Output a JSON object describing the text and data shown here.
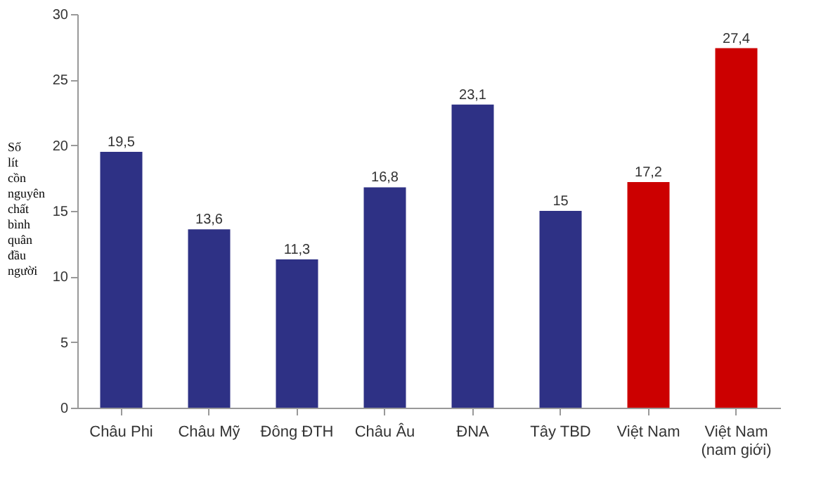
{
  "chart_data": {
    "type": "bar",
    "ylabel": "Số lít cồn nguyên chất bình quân đầu người",
    "categories": [
      "Châu Phi",
      "Châu Mỹ",
      "Đông ĐTH",
      "Châu Âu",
      "ĐNA",
      "Tây TBD",
      "Việt Nam",
      "Việt Nam\n(nam giới)"
    ],
    "values": [
      19.5,
      13.6,
      11.3,
      16.8,
      23.1,
      15,
      17.2,
      27.4
    ],
    "value_labels": [
      "19,5",
      "13,6",
      "11,3",
      "16,8",
      "23,1",
      "15",
      "17,2",
      "27,4"
    ],
    "colors": [
      "#2e3185",
      "#2e3185",
      "#2e3185",
      "#2e3185",
      "#2e3185",
      "#2e3185",
      "#cc0000",
      "#cc0000"
    ],
    "ylim": [
      0,
      30
    ],
    "yticks": [
      0,
      5,
      10,
      15,
      20,
      25,
      30
    ],
    "grid": false
  }
}
